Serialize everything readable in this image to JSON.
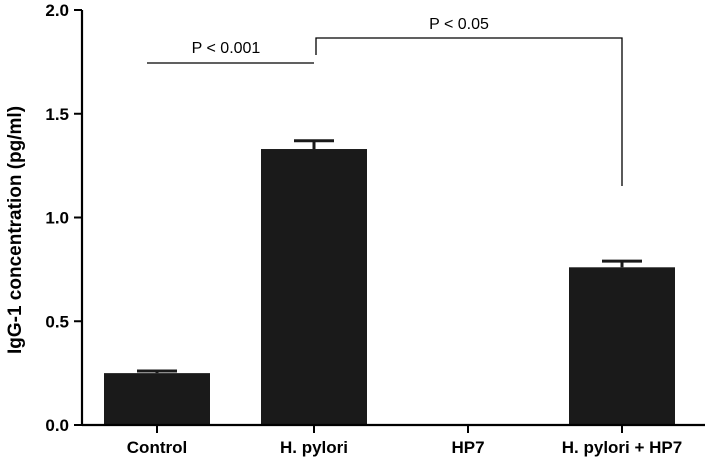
{
  "chart_data": {
    "type": "bar",
    "categories": [
      "Control",
      "H. pylori",
      "HP7",
      "H. pylori + HP7"
    ],
    "values": [
      0.25,
      1.33,
      0.0,
      0.76
    ],
    "error_upper": [
      0.26,
      1.37,
      0.0,
      0.79
    ],
    "ylabel": "IgG-1 concentration (pg/ml)",
    "ylim": [
      0,
      2.0
    ],
    "yticks": [
      0.0,
      0.5,
      1.0,
      1.5,
      2.0
    ],
    "ytick_labels": [
      "0.0",
      "0.5",
      "1.0",
      "1.5",
      "2.0"
    ],
    "grid": false,
    "colors": {
      "bar": "#1a1a1a",
      "axis": "#000000"
    },
    "annotations": [
      {
        "text": "P < 0.001"
      },
      {
        "text": "P < 0.05"
      }
    ]
  }
}
